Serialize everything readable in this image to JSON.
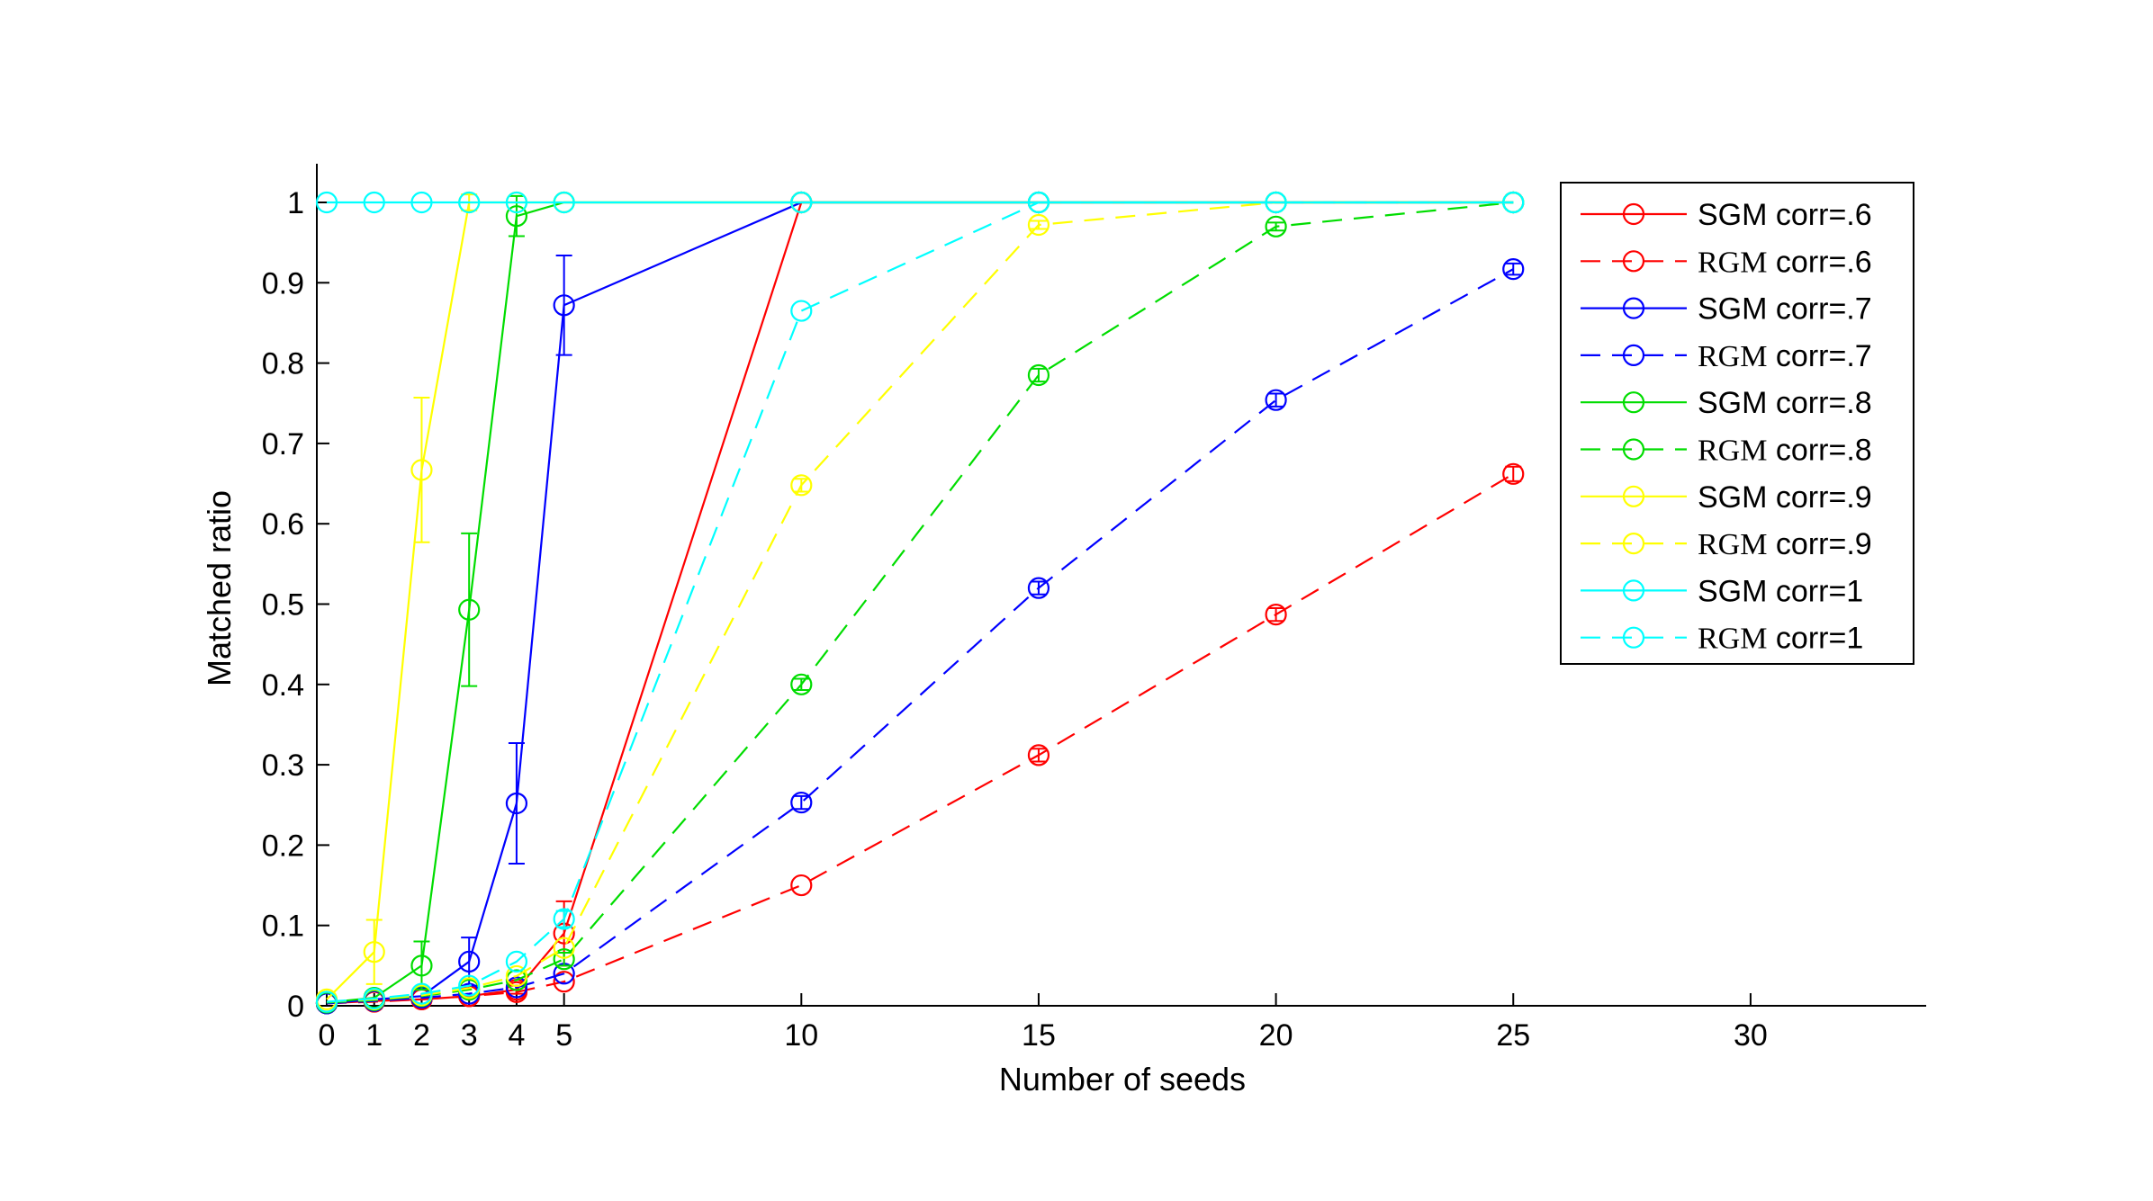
{
  "chart_data": {
    "type": "line",
    "title": "",
    "xlabel": "Number of seeds",
    "ylabel": "Matched ratio",
    "xlim": [
      -0.5,
      33.5
    ],
    "ylim": [
      0,
      1.04
    ],
    "x_ticks": [
      0,
      1,
      2,
      3,
      4,
      5,
      10,
      15,
      20,
      25,
      30
    ],
    "x_tick_labels": [
      "0",
      "1",
      "2",
      "3",
      "4",
      "5",
      "10",
      "15",
      "20",
      "25",
      "30"
    ],
    "y_ticks": [
      0,
      0.1,
      0.2,
      0.3,
      0.4,
      0.5,
      0.6,
      0.7,
      0.8,
      0.9,
      1
    ],
    "y_tick_labels": [
      "0",
      "0.1",
      "0.2",
      "0.3",
      "0.4",
      "0.5",
      "0.6",
      "0.7",
      "0.8",
      "0.9",
      "1"
    ],
    "grid": false,
    "legend_position": "top-right",
    "marker": "circle",
    "series": [
      {
        "name_prefix": "SGM",
        "name_suffix": " corr=.6",
        "color": "#ff0000",
        "dash": "solid",
        "x": [
          0,
          1,
          2,
          3,
          4,
          5,
          10,
          15,
          20,
          25
        ],
        "y": [
          0.003,
          0.006,
          0.008,
          0.012,
          0.02,
          0.09,
          1,
          1,
          1,
          1
        ],
        "err": [
          0,
          0,
          0,
          0,
          0.005,
          0.04,
          0,
          0,
          0,
          0
        ]
      },
      {
        "name_prefix": "RGM",
        "name_suffix": " corr=.6",
        "color": "#ff0000",
        "dash": "dashed",
        "x": [
          0,
          1,
          2,
          3,
          4,
          5,
          10,
          15,
          20,
          25
        ],
        "y": [
          0.003,
          0.005,
          0.008,
          0.012,
          0.017,
          0.03,
          0.15,
          0.312,
          0.487,
          0.662
        ],
        "err": [
          0,
          0,
          0,
          0,
          0,
          0,
          0,
          0.008,
          0.008,
          0.009
        ]
      },
      {
        "name_prefix": "SGM",
        "name_suffix": " corr=.7",
        "color": "#0000ff",
        "dash": "solid",
        "x": [
          0,
          1,
          2,
          3,
          4,
          5,
          10,
          15,
          20,
          25
        ],
        "y": [
          0.003,
          0.008,
          0.012,
          0.055,
          0.252,
          0.872,
          1,
          1,
          1,
          1
        ],
        "err": [
          0,
          0,
          0,
          0.03,
          0.075,
          0.062,
          0,
          0,
          0,
          0
        ]
      },
      {
        "name_prefix": "RGM",
        "name_suffix": " corr=.7",
        "color": "#0000ff",
        "dash": "dashed",
        "x": [
          0,
          1,
          2,
          3,
          4,
          5,
          10,
          15,
          20,
          25
        ],
        "y": [
          0.003,
          0.006,
          0.01,
          0.015,
          0.023,
          0.04,
          0.253,
          0.52,
          0.754,
          0.917
        ],
        "err": [
          0,
          0,
          0,
          0,
          0,
          0,
          0.008,
          0.008,
          0.008,
          0.007
        ]
      },
      {
        "name_prefix": "SGM",
        "name_suffix": " corr=.8",
        "color": "#00dd00",
        "dash": "solid",
        "x": [
          0,
          1,
          2,
          3,
          4,
          5,
          10,
          15,
          20,
          25
        ],
        "y": [
          0.004,
          0.01,
          0.05,
          0.493,
          0.983,
          1,
          1,
          1,
          1,
          1
        ],
        "err": [
          0,
          0,
          0.03,
          0.095,
          0.025,
          0,
          0,
          0,
          0,
          0
        ]
      },
      {
        "name_prefix": "RGM",
        "name_suffix": " corr=.8",
        "color": "#00dd00",
        "dash": "dashed",
        "x": [
          0,
          1,
          2,
          3,
          4,
          5,
          10,
          15,
          20,
          25
        ],
        "y": [
          0.004,
          0.007,
          0.012,
          0.02,
          0.032,
          0.058,
          0.4,
          0.785,
          0.97,
          1
        ],
        "err": [
          0,
          0,
          0,
          0,
          0,
          0.008,
          0.007,
          0.008,
          0.005,
          0
        ]
      },
      {
        "name_prefix": "SGM",
        "name_suffix": " corr=.9",
        "color": "#ffff00",
        "dash": "solid",
        "x": [
          0,
          1,
          2,
          3,
          4,
          5,
          10,
          15,
          20,
          25
        ],
        "y": [
          0.008,
          0.067,
          0.667,
          1,
          1,
          1,
          1,
          1,
          1,
          1
        ],
        "err": [
          0,
          0.04,
          0.09,
          0.01,
          0,
          0,
          0,
          0,
          0,
          0
        ]
      },
      {
        "name_prefix": "RGM",
        "name_suffix": " corr=.9",
        "color": "#ffff00",
        "dash": "dashed",
        "x": [
          0,
          1,
          2,
          3,
          4,
          5,
          10,
          15,
          20,
          25
        ],
        "y": [
          0.005,
          0.008,
          0.013,
          0.022,
          0.037,
          0.072,
          0.648,
          0.972,
          1,
          1
        ],
        "err": [
          0,
          0,
          0,
          0,
          0,
          0,
          0.008,
          0.005,
          0,
          0
        ]
      },
      {
        "name_prefix": "SGM",
        "name_suffix": " corr=1",
        "color": "#00ffff",
        "dash": "solid",
        "x": [
          0,
          1,
          2,
          3,
          4,
          5,
          10,
          15,
          20,
          25
        ],
        "y": [
          1,
          1,
          1,
          1,
          1,
          1,
          1,
          1,
          1,
          1
        ],
        "err": [
          0,
          0,
          0,
          0,
          0,
          0,
          0,
          0,
          0,
          0
        ]
      },
      {
        "name_prefix": "RGM",
        "name_suffix": " corr=1",
        "color": "#00ffff",
        "dash": "dashed",
        "x": [
          0,
          1,
          2,
          3,
          4,
          5,
          10,
          15,
          20,
          25
        ],
        "y": [
          0.005,
          0.009,
          0.015,
          0.025,
          0.055,
          0.108,
          0.865,
          1,
          1,
          1
        ],
        "err": [
          0,
          0,
          0,
          0,
          0,
          0.01,
          0,
          0,
          0,
          0
        ]
      }
    ]
  }
}
